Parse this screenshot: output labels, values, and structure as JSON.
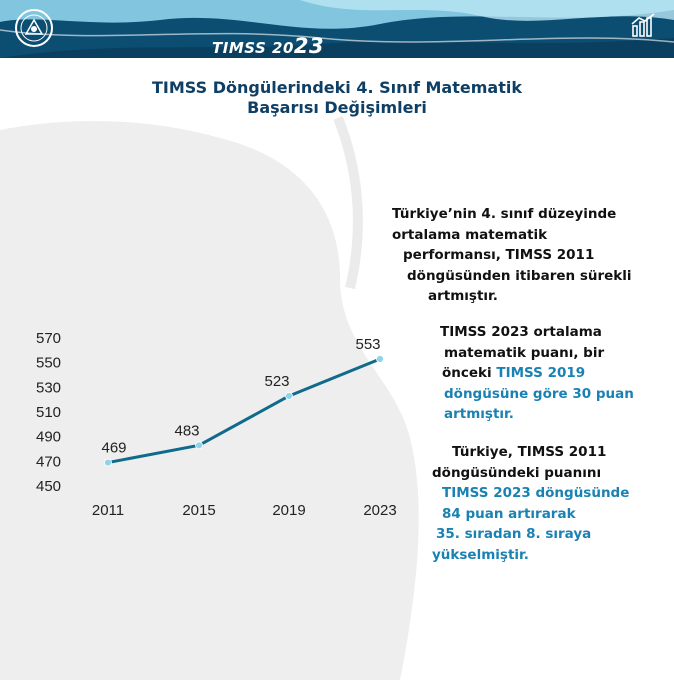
{
  "header": {
    "brand_prefix": "TIMSS 20",
    "brand_suffix": "23",
    "logo_icon": "ministry-seal-icon",
    "chart_icon": "bar-chart-icon",
    "colors": {
      "dark": "#0c4d72",
      "light": "#8fd3ea",
      "accent": "#1a82b3"
    }
  },
  "title": {
    "line1": "TIMSS Döngülerindeki 4. Sınıf Matematik",
    "line2": "Başarısı Değişimleri"
  },
  "paragraphs": {
    "p1": {
      "l1": "Türkiye’nin 4. sınıf düzeyinde",
      "l2": "ortalama matematik",
      "l3": "performansı, TIMSS 2011",
      "l4": "döngüsünden itibaren sürekli",
      "l5": "artmıştır."
    },
    "p2": {
      "l1": "TIMSS 2023 ortalama",
      "l2": "matematik puanı, bir",
      "l3_a": "önceki ",
      "l3_b": "TIMSS 2019",
      "l4": "döngüsüne göre 30 puan",
      "l5": "artmıştır."
    },
    "p3": {
      "l1": "Türkiye, TIMSS 2011",
      "l2": "döngüsündeki puanını",
      "l3": "TIMSS 2023 döngüsünde",
      "l4": "84 puan artırarak",
      "l5": "35. sıradan 8. sıraya",
      "l6": "yükselmiştir."
    }
  },
  "chart_data": {
    "type": "line",
    "categories": [
      "2011",
      "2015",
      "2019",
      "2023"
    ],
    "series": [
      {
        "values": [
          469,
          483,
          523,
          553
        ]
      }
    ],
    "y_ticks": [
      450,
      470,
      490,
      510,
      530,
      550,
      570
    ],
    "ylim": [
      450,
      570
    ],
    "grid": false,
    "line_color": "#0f6a8c",
    "marker_color": "#8fd3ea"
  }
}
